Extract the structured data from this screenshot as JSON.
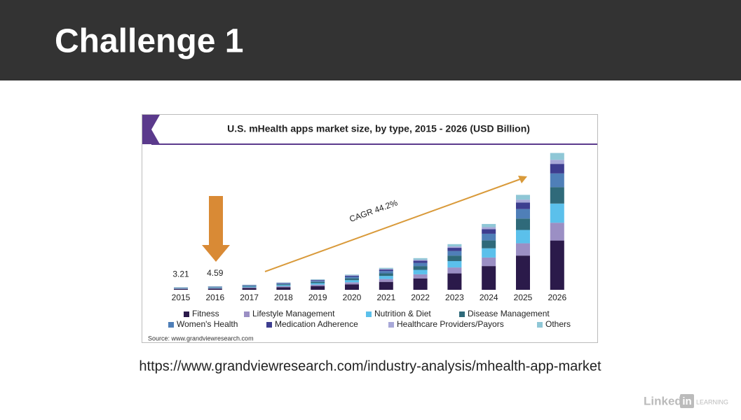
{
  "slide": {
    "title": "Challenge 1",
    "url": "https://www.grandviewresearch.com/industry-analysis/mhealth-app-market",
    "logo_linked": "Linked",
    "logo_in": "in",
    "logo_learning": "LEARNING"
  },
  "chart_data": {
    "type": "stacked-bar",
    "title": "U.S. mHealth apps market size, by type, 2015 - 2026 (USD Billion)",
    "source": "Source: www.grandviewresearch.com",
    "annotation": "CAGR 44.2%",
    "categories": [
      "2015",
      "2016",
      "2017",
      "2018",
      "2019",
      "2020",
      "2021",
      "2022",
      "2023",
      "2024",
      "2025",
      "2026"
    ],
    "totals": [
      3.21,
      4.59,
      null,
      null,
      null,
      null,
      null,
      null,
      null,
      null,
      null,
      null
    ],
    "ylim": [
      0,
      180
    ],
    "series": [
      {
        "name": "Fitness",
        "color": "#2b1a4a",
        "values": [
          1.16,
          1.65,
          2.38,
          3.42,
          4.9,
          7.1,
          10.3,
          14.8,
          21.3,
          30.8,
          44.4,
          64.0
        ]
      },
      {
        "name": "Lifestyle Management",
        "color": "#9b8fc4",
        "values": [
          0.42,
          0.6,
          0.86,
          1.24,
          1.8,
          2.6,
          3.7,
          5.3,
          7.7,
          11.1,
          16.0,
          23.1
        ]
      },
      {
        "name": "Nutrition & Diet",
        "color": "#5bc0eb",
        "values": [
          0.45,
          0.64,
          0.92,
          1.33,
          1.9,
          2.8,
          4.0,
          5.8,
          8.3,
          12.0,
          17.3,
          24.9
        ]
      },
      {
        "name": "Disease Management",
        "color": "#2f6a7a",
        "values": [
          0.39,
          0.55,
          0.79,
          1.14,
          1.6,
          2.4,
          3.4,
          4.9,
          7.1,
          10.3,
          14.8,
          21.3
        ]
      },
      {
        "name": "Women's Health",
        "color": "#4f7fb8",
        "values": [
          0.32,
          0.46,
          0.66,
          0.95,
          1.4,
          2.0,
          2.9,
          4.1,
          5.9,
          8.6,
          12.3,
          17.8
        ]
      },
      {
        "name": "Medication Adherence",
        "color": "#3d3d8f",
        "values": [
          0.22,
          0.32,
          0.46,
          0.67,
          1.0,
          1.4,
          2.0,
          2.9,
          4.2,
          6.0,
          8.6,
          12.4
        ]
      },
      {
        "name": "Healthcare Providers/Payors",
        "color": "#a8a8d8",
        "values": [
          0.1,
          0.14,
          0.2,
          0.29,
          0.4,
          0.6,
          0.9,
          1.2,
          1.8,
          2.6,
          3.7,
          5.3
        ]
      },
      {
        "name": "Others",
        "color": "#8fc7d6",
        "values": [
          0.15,
          0.23,
          0.33,
          0.46,
          0.7,
          0.9,
          1.3,
          2.1,
          3.0,
          4.1,
          6.2,
          8.9
        ]
      }
    ]
  }
}
